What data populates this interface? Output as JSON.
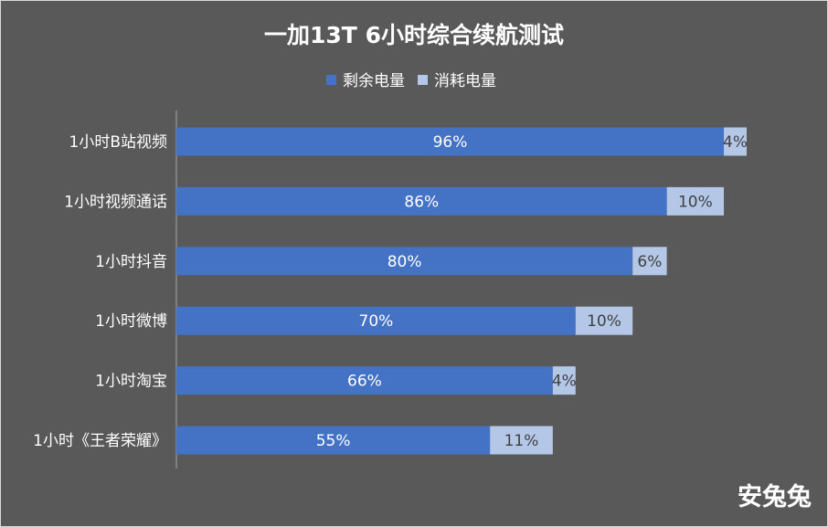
{
  "chart_data": {
    "type": "bar",
    "orientation": "horizontal",
    "stacked": true,
    "title": "一加13T 6小时综合续航测试",
    "categories": [
      "1小时B站视频",
      "1小时视频通话",
      "1小时抖音",
      "1小时微博",
      "1小时淘宝",
      "1小时《王者荣耀》"
    ],
    "series": [
      {
        "name": "剩余电量",
        "values": [
          96,
          86,
          80,
          70,
          66,
          55
        ],
        "labels": [
          "96%",
          "86%",
          "80%",
          "70%",
          "66%",
          "55%"
        ],
        "color": "#4472c4",
        "label_color": "#ffffff"
      },
      {
        "name": "消耗电量",
        "values": [
          4,
          10,
          6,
          10,
          4,
          11
        ],
        "labels": [
          "4%",
          "10%",
          "6%",
          "10%",
          "4%",
          "11%"
        ],
        "color": "#b4c7e7",
        "label_color": "#404040"
      }
    ],
    "xlim": [
      0,
      100
    ],
    "legend_position": "top",
    "grid": false
  },
  "watermark": "安兔兔",
  "colors": {
    "background": "#595959",
    "title_text": "#ffffff",
    "axis_text": "#ffffff",
    "axis_line": "#a6a6a6"
  }
}
